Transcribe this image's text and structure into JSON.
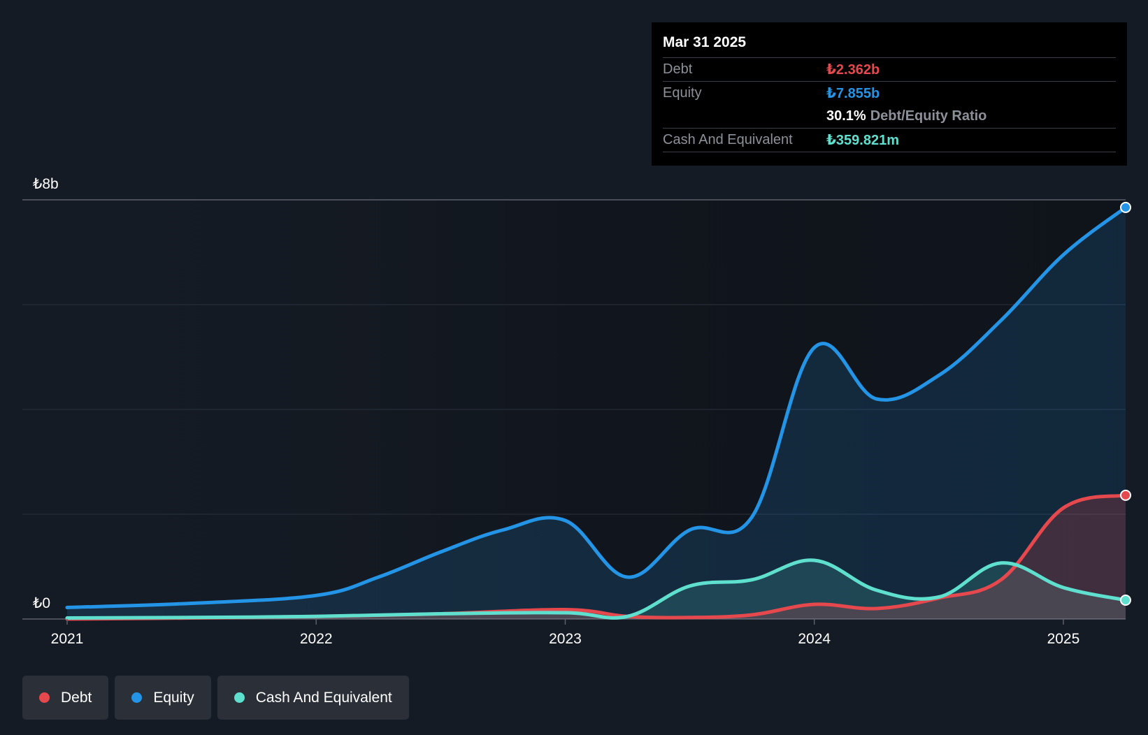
{
  "chart_data": {
    "type": "area",
    "y_ticks": [
      "₺8b",
      "₺0"
    ],
    "x_ticks": [
      "2021",
      "2022",
      "2023",
      "2024",
      "2025"
    ],
    "ylim": [
      0,
      8
    ],
    "y_unit": "billions ₺",
    "grid": true,
    "series": [
      {
        "name": "Debt",
        "color": "#e5484d",
        "x": [
          2021.0,
          2021.5,
          2022.0,
          2022.5,
          2023.0,
          2023.25,
          2023.5,
          2023.75,
          2024.0,
          2024.25,
          2024.5,
          2024.75,
          2025.0,
          2025.25
        ],
        "values": [
          0.0,
          0.02,
          0.05,
          0.1,
          0.18,
          0.05,
          0.03,
          0.08,
          0.28,
          0.2,
          0.4,
          0.75,
          2.12,
          2.362
        ]
      },
      {
        "name": "Equity",
        "color": "#2394e6",
        "x": [
          2021.0,
          2021.5,
          2022.0,
          2022.25,
          2022.5,
          2022.75,
          2023.0,
          2023.25,
          2023.5,
          2023.75,
          2024.0,
          2024.25,
          2024.5,
          2024.75,
          2025.0,
          2025.25
        ],
        "values": [
          0.22,
          0.3,
          0.45,
          0.8,
          1.28,
          1.7,
          1.88,
          0.8,
          1.7,
          1.95,
          5.18,
          4.2,
          4.65,
          5.7,
          6.95,
          7.855
        ]
      },
      {
        "name": "Cash And Equivalent",
        "color": "#5fe0cf",
        "x": [
          2021.0,
          2021.5,
          2022.0,
          2022.5,
          2023.0,
          2023.25,
          2023.5,
          2023.75,
          2024.0,
          2024.25,
          2024.5,
          2024.75,
          2025.0,
          2025.25
        ],
        "values": [
          0.02,
          0.03,
          0.05,
          0.1,
          0.12,
          0.05,
          0.63,
          0.75,
          1.12,
          0.55,
          0.42,
          1.07,
          0.6,
          0.36
        ]
      }
    ]
  },
  "tooltip": {
    "date": "Mar 31 2025",
    "debt_label": "Debt",
    "debt_value": "₺2.362b",
    "equity_label": "Equity",
    "equity_value": "₺7.855b",
    "ratio_value": "30.1%",
    "ratio_label": "Debt/Equity Ratio",
    "cash_label": "Cash And Equivalent",
    "cash_value": "₺359.821m"
  },
  "legend": {
    "debt": "Debt",
    "equity": "Equity",
    "cash": "Cash And Equivalent"
  },
  "colors": {
    "background": "#151b24",
    "debt": "#e5484d",
    "equity": "#2394e6",
    "cash": "#5fe0cf"
  }
}
